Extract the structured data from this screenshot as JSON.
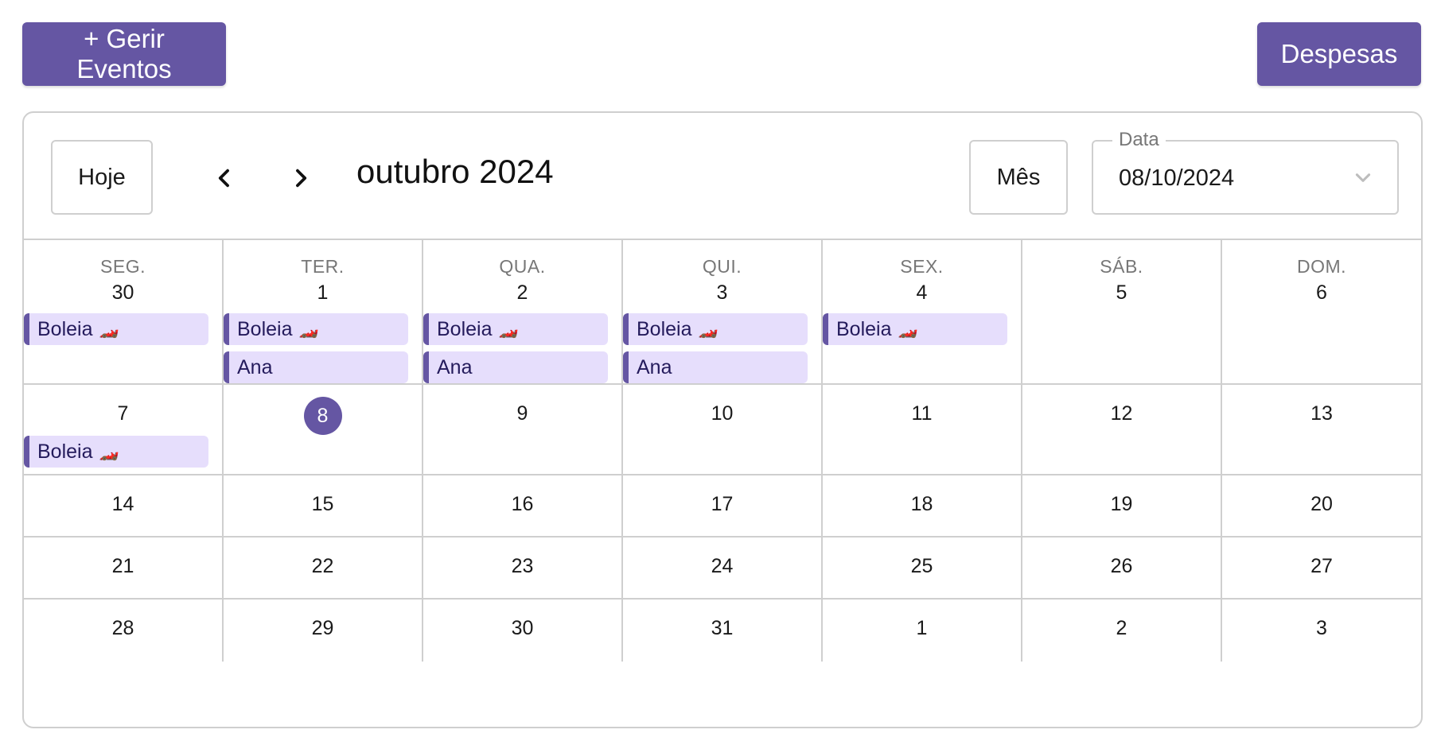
{
  "header": {
    "manage_events_label": "+ Gerir Eventos",
    "expenses_label": "Despesas"
  },
  "toolbar": {
    "today_label": "Hoje",
    "month_title": "outubro 2024",
    "view_label": "Mês",
    "date_field_label": "Data",
    "date_field_value": "08/10/2024"
  },
  "colors": {
    "accent": "#6556a3",
    "event_bg": "#e6defc",
    "event_text": "#241b5c",
    "border": "#cfcfcf"
  },
  "weekdays": [
    "SEG.",
    "TER.",
    "QUA.",
    "QUI.",
    "SEX.",
    "SÁB.",
    "DOM."
  ],
  "weeks": [
    {
      "days": [
        {
          "day": "30",
          "events": [
            {
              "title": "Boleia",
              "emoji": "🏎️"
            }
          ]
        },
        {
          "day": "1",
          "events": [
            {
              "title": "Boleia",
              "emoji": "🏎️"
            },
            {
              "title": "Ana",
              "emoji": ""
            }
          ]
        },
        {
          "day": "2",
          "events": [
            {
              "title": "Boleia",
              "emoji": "🏎️"
            },
            {
              "title": "Ana",
              "emoji": ""
            }
          ]
        },
        {
          "day": "3",
          "events": [
            {
              "title": "Boleia",
              "emoji": "🏎️"
            },
            {
              "title": "Ana",
              "emoji": ""
            }
          ]
        },
        {
          "day": "4",
          "events": [
            {
              "title": "Boleia",
              "emoji": "🏎️"
            }
          ]
        },
        {
          "day": "5",
          "events": []
        },
        {
          "day": "6",
          "events": []
        }
      ]
    },
    {
      "days": [
        {
          "day": "7",
          "events": [
            {
              "title": "Boleia",
              "emoji": "🏎️"
            }
          ]
        },
        {
          "day": "8",
          "today": true,
          "events": []
        },
        {
          "day": "9",
          "events": []
        },
        {
          "day": "10",
          "events": []
        },
        {
          "day": "11",
          "events": []
        },
        {
          "day": "12",
          "events": []
        },
        {
          "day": "13",
          "events": []
        }
      ]
    },
    {
      "days": [
        {
          "day": "14",
          "events": []
        },
        {
          "day": "15",
          "events": []
        },
        {
          "day": "16",
          "events": []
        },
        {
          "day": "17",
          "events": []
        },
        {
          "day": "18",
          "events": []
        },
        {
          "day": "19",
          "events": []
        },
        {
          "day": "20",
          "events": []
        }
      ]
    },
    {
      "days": [
        {
          "day": "21",
          "events": []
        },
        {
          "day": "22",
          "events": []
        },
        {
          "day": "23",
          "events": []
        },
        {
          "day": "24",
          "events": []
        },
        {
          "day": "25",
          "events": []
        },
        {
          "day": "26",
          "events": []
        },
        {
          "day": "27",
          "events": []
        }
      ]
    },
    {
      "days": [
        {
          "day": "28",
          "events": []
        },
        {
          "day": "29",
          "events": []
        },
        {
          "day": "30",
          "events": []
        },
        {
          "day": "31",
          "events": []
        },
        {
          "day": "1",
          "events": []
        },
        {
          "day": "2",
          "events": []
        },
        {
          "day": "3",
          "events": []
        }
      ]
    }
  ]
}
